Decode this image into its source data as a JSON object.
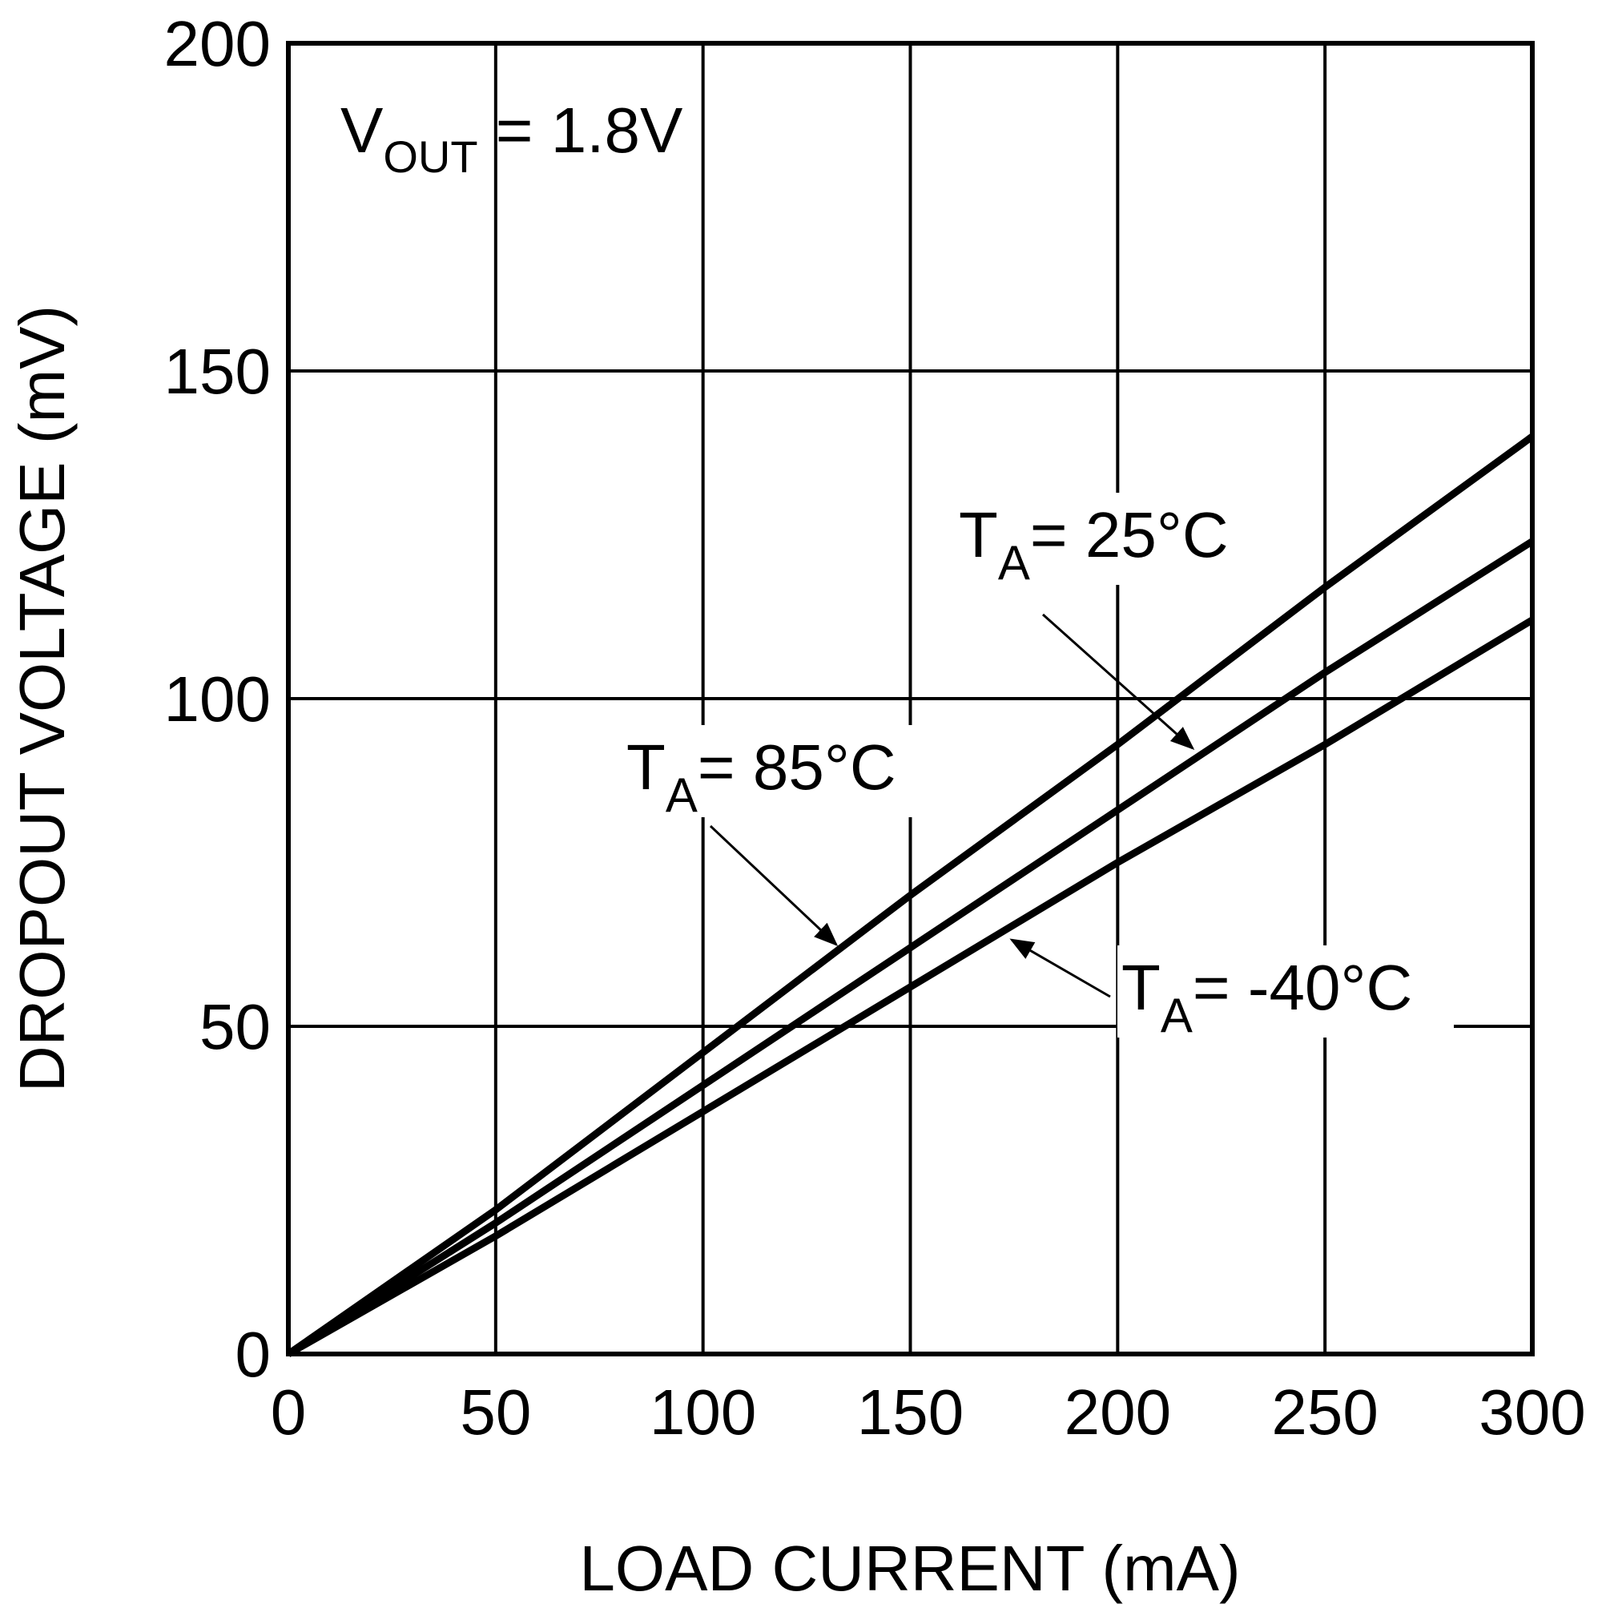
{
  "chart_data": {
    "type": "line",
    "title": "",
    "xlabel": "LOAD CURRENT (mA)",
    "ylabel": "DROPOUT VOLTAGE (mV)",
    "xlim": [
      0,
      300
    ],
    "ylim": [
      0,
      200
    ],
    "xticks": [
      "0",
      "50",
      "100",
      "150",
      "200",
      "250",
      "300"
    ],
    "yticks": [
      "0",
      "50",
      "100",
      "150",
      "200"
    ],
    "grid": true,
    "annotation": {
      "main": "V",
      "sub": "OUT",
      "rest": " = 1.8V"
    },
    "series": [
      {
        "name": "85°C",
        "label_main": "T",
        "label_sub": "A",
        "label_rest": "= 85°C",
        "x": [
          0,
          50,
          100,
          150,
          200,
          250,
          300
        ],
        "y": [
          0,
          22,
          46,
          70,
          93,
          117,
          140
        ]
      },
      {
        "name": "25°C",
        "label_main": "T",
        "label_sub": "A",
        "label_rest": "= 25°C",
        "x": [
          0,
          50,
          100,
          150,
          200,
          250,
          300
        ],
        "y": [
          0,
          20,
          41,
          62,
          83,
          104,
          124
        ]
      },
      {
        "name": "-40°C",
        "label_main": "T",
        "label_sub": "A",
        "label_rest": "= -40°C",
        "x": [
          0,
          50,
          100,
          150,
          200,
          250,
          300
        ],
        "y": [
          0,
          18,
          37,
          56,
          75,
          93,
          112
        ]
      }
    ],
    "line_color": "#000000"
  }
}
